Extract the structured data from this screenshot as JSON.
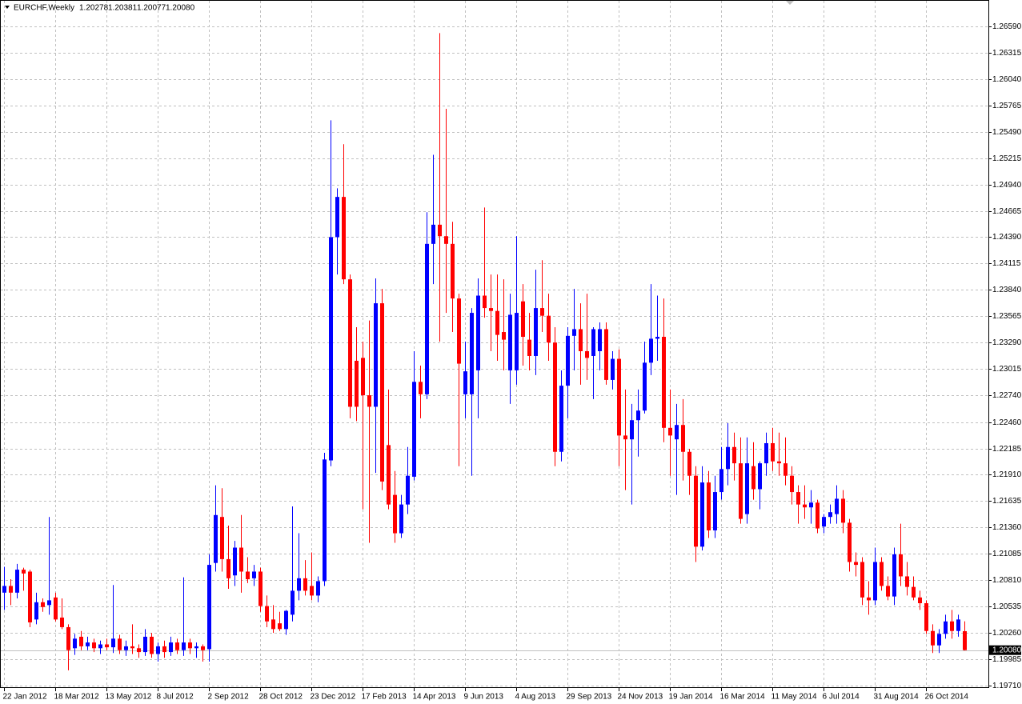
{
  "chart_data": {
    "type": "candlestick",
    "title": "EURCHF,Weekly",
    "last_bar_labels": [
      "1.20278",
      "1.20381",
      "1.20077",
      "1.20080"
    ],
    "up_color": "#0000ff",
    "down_color": "#ff0000",
    "grid": true,
    "ylim": [
      1.19685,
      1.2684
    ],
    "yticks": [
      {
        "value": 1.2659,
        "label": "1.26590"
      },
      {
        "value": 1.26315,
        "label": "1.26315"
      },
      {
        "value": 1.2604,
        "label": "1.26040"
      },
      {
        "value": 1.25765,
        "label": "1.25765"
      },
      {
        "value": 1.2549,
        "label": "1.25490"
      },
      {
        "value": 1.25215,
        "label": "1.25215"
      },
      {
        "value": 1.2494,
        "label": "1.24940"
      },
      {
        "value": 1.24665,
        "label": "1.24665"
      },
      {
        "value": 1.2439,
        "label": "1.24390"
      },
      {
        "value": 1.24115,
        "label": "1.24115"
      },
      {
        "value": 1.2384,
        "label": "1.23840"
      },
      {
        "value": 1.23565,
        "label": "1.23565"
      },
      {
        "value": 1.2329,
        "label": "1.23290"
      },
      {
        "value": 1.23015,
        "label": "1.23015"
      },
      {
        "value": 1.2274,
        "label": "1.22740"
      },
      {
        "value": 1.2246,
        "label": "1.22460"
      },
      {
        "value": 1.22185,
        "label": "1.22185"
      },
      {
        "value": 1.2191,
        "label": "1.21910"
      },
      {
        "value": 1.21635,
        "label": "1.21635"
      },
      {
        "value": 1.2136,
        "label": "1.21360"
      },
      {
        "value": 1.21085,
        "label": "1.21085"
      },
      {
        "value": 1.2081,
        "label": "1.20810"
      },
      {
        "value": 1.20535,
        "label": "1.20535"
      },
      {
        "value": 1.2026,
        "label": "1.20260"
      },
      {
        "value": 1.19985,
        "label": "1.19985"
      },
      {
        "value": 1.1971,
        "label": "1.19710"
      }
    ],
    "categories": [
      "22 Jan 2012",
      null,
      null,
      null,
      null,
      null,
      null,
      null,
      "18 Mar 2012",
      null,
      null,
      null,
      null,
      null,
      null,
      null,
      "13 May 2012",
      null,
      null,
      null,
      null,
      null,
      null,
      null,
      "8 Jul 2012",
      null,
      null,
      null,
      null,
      null,
      null,
      null,
      "2 Sep 2012",
      null,
      null,
      null,
      null,
      null,
      null,
      null,
      "28 Oct 2012",
      null,
      null,
      null,
      null,
      null,
      null,
      null,
      "23 Dec 2012",
      null,
      null,
      null,
      null,
      null,
      null,
      null,
      "17 Feb 2013",
      null,
      null,
      null,
      null,
      null,
      null,
      null,
      "14 Apr 2013",
      null,
      null,
      null,
      null,
      null,
      null,
      null,
      "9 Jun 2013",
      null,
      null,
      null,
      null,
      null,
      null,
      null,
      "4 Aug 2013",
      null,
      null,
      null,
      null,
      null,
      null,
      null,
      "29 Sep 2013",
      null,
      null,
      null,
      null,
      null,
      null,
      null,
      "24 Nov 2013",
      null,
      null,
      null,
      null,
      null,
      null,
      null,
      "19 Jan 2014",
      null,
      null,
      null,
      null,
      null,
      null,
      null,
      "16 Mar 2014",
      null,
      null,
      null,
      null,
      null,
      null,
      null,
      "11 May 2014",
      null,
      null,
      null,
      null,
      null,
      null,
      null,
      "6 Jul 2014",
      null,
      null,
      null,
      null,
      null,
      null,
      null,
      "31 Aug 2014",
      null,
      null,
      null,
      null,
      null,
      null,
      null,
      "26 Oct 2014",
      null,
      null,
      null,
      null,
      null,
      null
    ],
    "open": [
      1.2068,
      1.2075,
      1.2068,
      1.2092,
      1.209,
      1.204,
      1.2058,
      1.2055,
      1.2063,
      1.2042,
      1.2032,
      1.201,
      1.2022,
      1.2012,
      1.2016,
      1.201,
      1.2014,
      1.2011,
      1.202,
      1.2008,
      1.2012,
      1.201,
      1.2006,
      1.2022,
      1.2004,
      1.2012,
      1.2006,
      1.2016,
      1.2008,
      1.2016,
      1.201,
      1.2012,
      1.2009,
      1.2099,
      1.2147,
      1.2103,
      1.2086,
      1.2115,
      1.209,
      1.2083,
      1.209,
      1.2054,
      1.204,
      1.2036,
      1.203,
      1.2045,
      1.207,
      1.2083,
      1.2075,
      1.2065,
      1.208,
      1.2206,
      1.2439,
      1.2481,
      1.2395,
      1.231,
      1.2313,
      1.2274,
      1.2262,
      1.237,
      1.2222,
      1.217,
      1.213,
      1.216,
      1.2189,
      1.2288,
      1.2275,
      1.2432,
      1.2452,
      1.244,
      1.2432,
      1.2375,
      1.2275,
      1.2275,
      1.23,
      1.2378,
      1.2365,
      1.2362,
      1.234,
      1.23,
      1.23,
      1.2372,
      1.2332,
      1.2315,
      1.2365,
      1.2357,
      1.2329,
      1.2215,
      1.2284,
      1.2336,
      1.2343,
      1.232,
      1.2315,
      1.232,
      1.2343,
      1.229,
      1.2312,
      1.2232,
      1.2228,
      1.2248,
      1.2258,
      1.2308,
      1.2333,
      1.2335,
      1.224,
      1.2228,
      1.2243,
      1.2215,
      1.219,
      1.2116,
      1.2183,
      1.2133,
      1.2173,
      1.2197,
      1.222,
      1.2203,
      1.215,
      1.22,
      1.2176,
      1.2203,
      1.2224,
      1.2205,
      1.2203,
      1.219,
      1.2173,
      1.216,
      1.2157,
      1.2162,
      1.2137,
      1.2147,
      1.215,
      1.2166,
      1.2141,
      1.21,
      1.21,
      1.2063,
      1.206,
      1.21,
      1.2075,
      1.2064,
      1.2108,
      1.2085,
      1.2074,
      1.2063,
      1.2057,
      1.2028,
      1.2013,
      1.2025,
      1.2038,
      1.2028,
      1.20278
    ],
    "high": [
      1.2095,
      1.2082,
      1.2098,
      1.2094,
      1.2092,
      1.2068,
      1.2062,
      1.2147,
      1.2068,
      1.2062,
      1.2035,
      1.2025,
      1.2028,
      1.2022,
      1.202,
      1.2018,
      1.202,
      1.2076,
      1.2024,
      1.2018,
      1.2035,
      1.2014,
      1.203,
      1.2026,
      1.2016,
      1.2018,
      1.2022,
      1.202,
      1.2084,
      1.202,
      1.2016,
      1.2014,
      1.2108,
      1.218,
      1.2177,
      1.2138,
      1.2122,
      1.2149,
      1.2105,
      1.2097,
      1.2094,
      1.2065,
      1.2055,
      1.2048,
      1.205,
      1.2158,
      1.213,
      1.2102,
      1.211,
      1.2085,
      1.2214,
      1.2561,
      1.249,
      1.2536,
      1.24,
      1.2345,
      1.233,
      1.2352,
      1.2396,
      1.2385,
      1.228,
      1.2195,
      1.217,
      1.222,
      1.232,
      1.2305,
      1.2465,
      1.2525,
      1.2652,
      1.2573,
      1.2455,
      1.238,
      1.233,
      1.2365,
      1.2396,
      1.247,
      1.24,
      1.24,
      1.2395,
      1.238,
      1.244,
      1.239,
      1.236,
      1.2405,
      1.2415,
      1.238,
      1.2345,
      1.23,
      1.2345,
      1.2385,
      1.237,
      1.238,
      1.2345,
      1.235,
      1.235,
      1.232,
      1.2322,
      1.228,
      1.2265,
      1.228,
      1.233,
      1.239,
      1.2378,
      1.2375,
      1.228,
      1.2265,
      1.227,
      1.2218,
      1.22,
      1.22,
      1.2195,
      1.219,
      1.222,
      1.2245,
      1.2235,
      1.223,
      1.223,
      1.2225,
      1.2205,
      1.2235,
      1.224,
      1.2235,
      1.223,
      1.22,
      1.218,
      1.218,
      1.2175,
      1.2165,
      1.215,
      1.216,
      1.218,
      1.2175,
      1.2145,
      1.211,
      1.2105,
      1.208,
      1.2115,
      1.2105,
      1.2085,
      1.2115,
      1.214,
      1.21,
      1.2085,
      1.207,
      1.206,
      1.2035,
      1.203,
      1.2045,
      1.205,
      1.2045,
      1.20381
    ],
    "low": [
      1.205,
      1.2055,
      1.2062,
      1.207,
      1.2032,
      1.2035,
      1.2048,
      1.2045,
      1.2038,
      1.203,
      1.1987,
      1.2003,
      1.2008,
      1.2008,
      1.2006,
      1.2004,
      1.2008,
      1.2005,
      1.2004,
      1.2002,
      1.2004,
      1.2,
      1.2002,
      1.2,
      1.1996,
      1.2,
      1.2002,
      1.2004,
      1.2002,
      1.2004,
      1.2,
      1.1996,
      1.1996,
      1.209,
      1.209,
      1.2072,
      1.2075,
      1.2068,
      1.2078,
      1.2075,
      1.2048,
      1.2032,
      1.2026,
      1.2028,
      1.2024,
      1.2038,
      1.206,
      1.2065,
      1.206,
      1.2058,
      1.2075,
      1.22,
      1.24,
      1.239,
      1.225,
      1.2247,
      1.2155,
      1.212,
      1.2193,
      1.2175,
      1.2155,
      1.212,
      1.2125,
      1.215,
      1.2185,
      1.225,
      1.227,
      1.239,
      1.233,
      1.236,
      1.234,
      1.22,
      1.225,
      1.219,
      1.225,
      1.2355,
      1.232,
      1.231,
      1.23,
      1.2265,
      1.2285,
      1.2305,
      1.23,
      1.2295,
      1.234,
      1.231,
      1.22,
      1.2205,
      1.225,
      1.23,
      1.2285,
      1.229,
      1.227,
      1.23,
      1.2285,
      1.228,
      1.22,
      1.2175,
      1.216,
      1.221,
      1.2255,
      1.2295,
      1.231,
      1.2225,
      1.219,
      1.217,
      1.2185,
      1.217,
      1.21,
      1.2112,
      1.2125,
      1.2125,
      1.2165,
      1.218,
      1.2185,
      1.214,
      1.214,
      1.2165,
      1.2155,
      1.219,
      1.2195,
      1.219,
      1.218,
      1.216,
      1.214,
      1.2145,
      1.214,
      1.213,
      1.213,
      1.214,
      1.214,
      1.213,
      1.209,
      1.2085,
      1.2055,
      1.2045,
      1.2055,
      1.207,
      1.206,
      1.2055,
      1.2075,
      1.2065,
      1.206,
      1.205,
      1.2025,
      1.2005,
      1.2005,
      1.202,
      1.202,
      1.2022,
      1.20077
    ],
    "close": [
      1.2075,
      1.2068,
      1.2092,
      1.2088,
      1.2037,
      1.2058,
      1.2053,
      1.206,
      1.204,
      1.2032,
      1.2008,
      1.202,
      1.2012,
      1.2016,
      1.201,
      1.2014,
      1.2011,
      1.202,
      1.2008,
      1.2012,
      1.201,
      1.2006,
      1.2022,
      1.2004,
      1.2012,
      1.2006,
      1.2016,
      1.2008,
      1.2016,
      1.201,
      1.2012,
      1.2008,
      1.2097,
      1.2149,
      1.2103,
      1.2083,
      1.2115,
      1.209,
      1.2082,
      1.209,
      1.2054,
      1.2038,
      1.203,
      1.203,
      1.2049,
      1.207,
      1.2083,
      1.207,
      1.2065,
      1.208,
      1.2207,
      1.2439,
      1.2481,
      1.2395,
      1.2262,
      1.2262,
      1.2274,
      1.2262,
      1.237,
      1.2184,
      1.216,
      1.213,
      1.216,
      1.219,
      1.2288,
      1.2275,
      1.2432,
      1.2452,
      1.244,
      1.2432,
      1.2375,
      1.2307,
      1.2299,
      1.236,
      1.2378,
      1.2365,
      1.2362,
      1.2337,
      1.2332,
      1.2358,
      1.236,
      1.2335,
      1.2315,
      1.2365,
      1.2357,
      1.2329,
      1.2215,
      1.2284,
      1.2336,
      1.2343,
      1.232,
      1.2313,
      1.2343,
      1.2343,
      1.229,
      1.2312,
      1.2232,
      1.2228,
      1.2248,
      1.2258,
      1.2308,
      1.2333,
      1.2335,
      1.224,
      1.2232,
      1.2243,
      1.2215,
      1.219,
      1.2116,
      1.2183,
      1.2133,
      1.2173,
      1.2197,
      1.222,
      1.2203,
      1.2145,
      1.2203,
      1.2176,
      1.2203,
      1.2224,
      1.2205,
      1.2203,
      1.219,
      1.2173,
      1.216,
      1.2157,
      1.2162,
      1.2135,
      1.2147,
      1.2152,
      1.2166,
      1.2141,
      1.21,
      1.2097,
      1.2063,
      1.206,
      1.21,
      1.2075,
      1.2064,
      1.2108,
      1.2085,
      1.2074,
      1.2063,
      1.2057,
      1.2028,
      1.2013,
      1.2025,
      1.2038,
      1.2028,
      1.204,
      1.2008
    ]
  }
}
